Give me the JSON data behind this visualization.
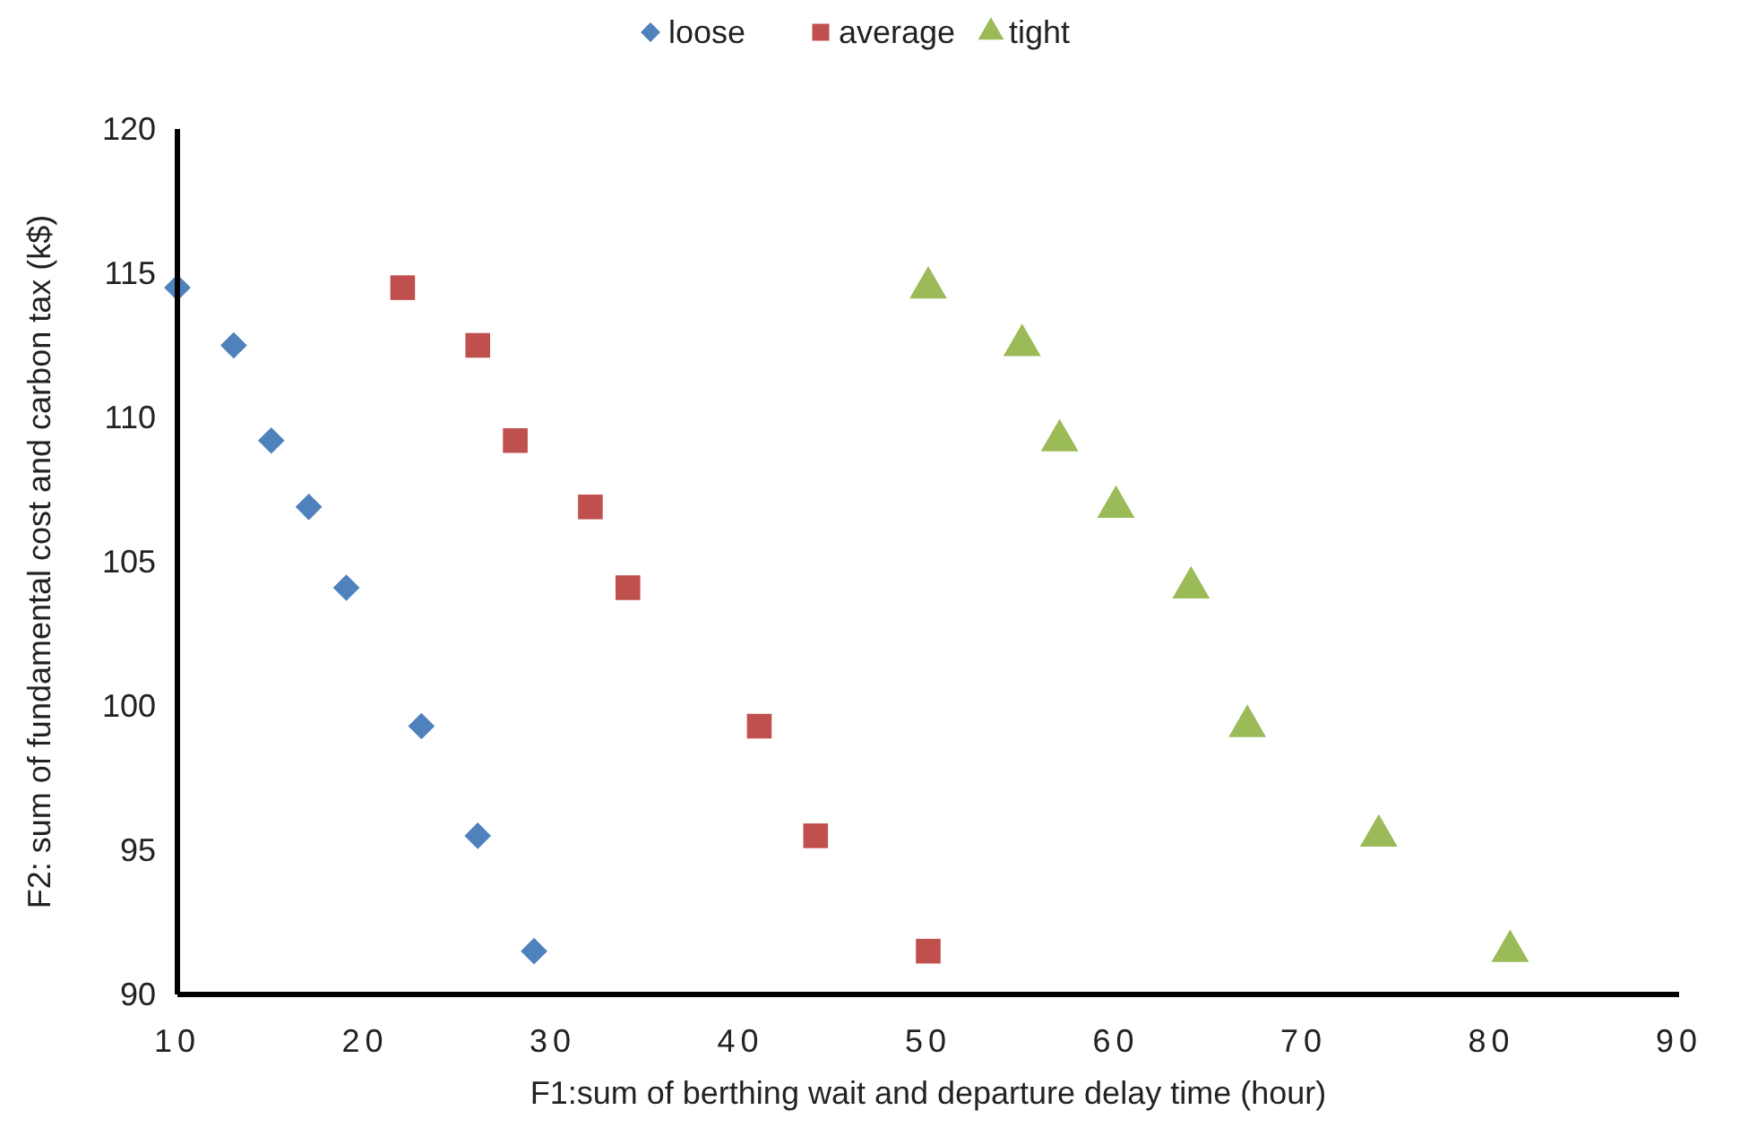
{
  "chart_data": {
    "type": "scatter",
    "xlabel": "F1:sum of berthing wait and departure delay time (hour)",
    "ylabel": "F2: sum of fundamental cost and carbon tax (k$)",
    "xlim": [
      10,
      90
    ],
    "xticks": [
      10,
      20,
      30,
      40,
      50,
      60,
      70,
      80,
      90
    ],
    "ylim": [
      90,
      120
    ],
    "yticks": [
      90,
      95,
      100,
      105,
      110,
      115,
      120
    ],
    "grid": false,
    "legend": "top",
    "series": [
      {
        "name": "loose",
        "color": "#4f81bd",
        "marker": "diamond",
        "x": [
          10,
          13,
          15,
          17,
          19,
          23,
          26,
          29
        ],
        "values": [
          114.5,
          112.5,
          109.2,
          106.9,
          104.1,
          99.3,
          95.5,
          91.5
        ]
      },
      {
        "name": "average",
        "color": "#c0504d",
        "marker": "square",
        "x": [
          22,
          26,
          28,
          32,
          34,
          41,
          44,
          50
        ],
        "values": [
          114.5,
          112.5,
          109.2,
          106.9,
          104.1,
          99.3,
          95.5,
          91.5
        ]
      },
      {
        "name": "tight",
        "color": "#9bbb59",
        "marker": "triangle",
        "x": [
          50,
          55,
          57,
          60,
          64,
          67,
          74,
          81
        ],
        "values": [
          114.5,
          112.5,
          109.2,
          106.9,
          104.1,
          99.3,
          95.5,
          91.5
        ]
      }
    ]
  }
}
